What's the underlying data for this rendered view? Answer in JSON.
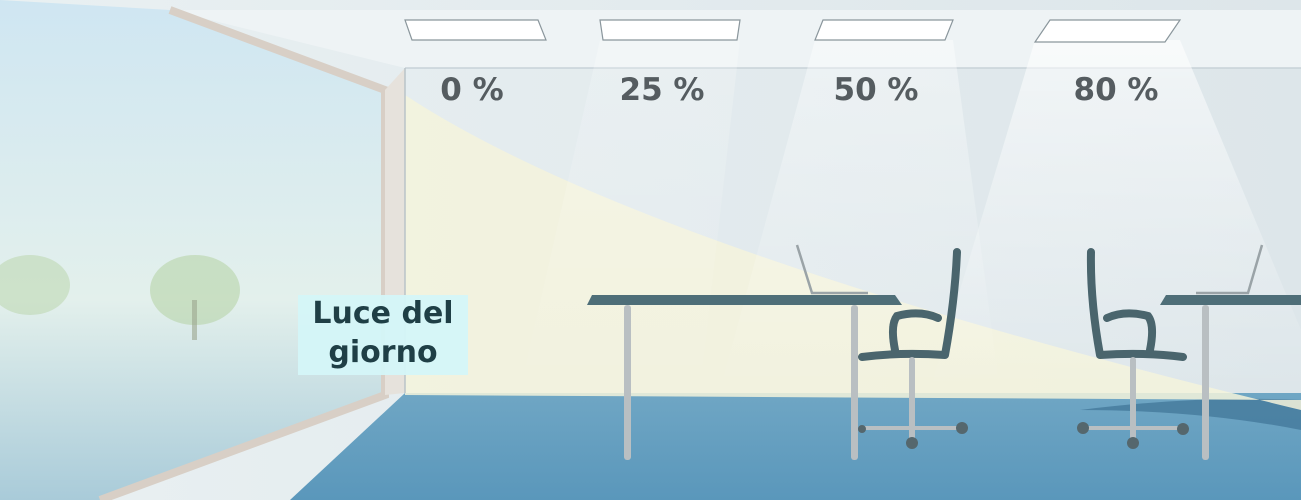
{
  "lamps": [
    {
      "label": "0 %"
    },
    {
      "label": "25 %"
    },
    {
      "label": "50 %"
    },
    {
      "label": "80 %"
    }
  ],
  "daylight": {
    "lines": [
      "Luce del",
      "giorno"
    ]
  }
}
